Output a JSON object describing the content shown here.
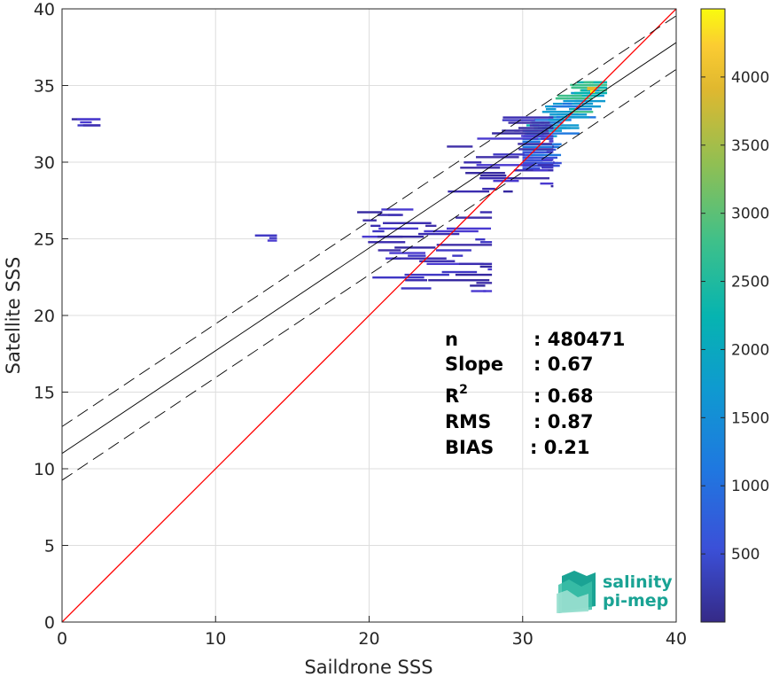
{
  "chart_data": {
    "type": "heatmap",
    "title": "",
    "xlabel": "Saildrone SSS",
    "ylabel": "Satellite SSS",
    "xlim": [
      0,
      40
    ],
    "ylim": [
      0,
      40
    ],
    "xticks": [
      "0",
      "10",
      "20",
      "30",
      "40"
    ],
    "yticks": [
      "0",
      "5",
      "10",
      "15",
      "20",
      "25",
      "30",
      "35",
      "40"
    ],
    "grid": true,
    "colormap": "parula",
    "colorbar": {
      "range": [
        0,
        4500
      ],
      "ticks": [
        "500",
        "1000",
        "1500",
        "2000",
        "2500",
        "3000",
        "3500",
        "4000"
      ]
    },
    "reference_lines": [
      {
        "name": "1:1 line",
        "slope": 1,
        "intercept": 0,
        "color": "#ff0000",
        "style": "solid"
      },
      {
        "name": "regression",
        "slope": 0.67,
        "intercept": 11.0,
        "color": "#000000",
        "style": "solid"
      },
      {
        "name": "regression upper",
        "slope": 0.67,
        "intercept": 12.75,
        "color": "#000000",
        "style": "dashed"
      },
      {
        "name": "regression lower",
        "slope": 0.67,
        "intercept": 9.25,
        "color": "#000000",
        "style": "dashed"
      }
    ],
    "density_clusters": [
      {
        "x": [
          30,
          35.5
        ],
        "y": [
          29.5,
          35.3
        ],
        "intensity": "high"
      },
      {
        "x": [
          25,
          32
        ],
        "y": [
          28,
          33
        ],
        "intensity": "low"
      },
      {
        "x": [
          19,
          28
        ],
        "y": [
          21.5,
          27
        ],
        "intensity": "low"
      },
      {
        "x": [
          0,
          2.5
        ],
        "y": [
          32.3,
          32.9
        ],
        "intensity": "low"
      },
      {
        "x": [
          12.5,
          14
        ],
        "y": [
          24.8,
          25.3
        ],
        "intensity": "low"
      }
    ],
    "stats": [
      {
        "label": "n",
        "value": ": 480471"
      },
      {
        "label": "Slope",
        "value": ": 0.67"
      },
      {
        "label": "R",
        "sup": "2",
        "value": ": 0.68"
      },
      {
        "label": "RMS",
        "value": ": 0.87"
      },
      {
        "label": "BIAS",
        "value": ": 0.21"
      }
    ]
  },
  "logo": {
    "line1": "salinity",
    "line2": "pi-mep"
  }
}
